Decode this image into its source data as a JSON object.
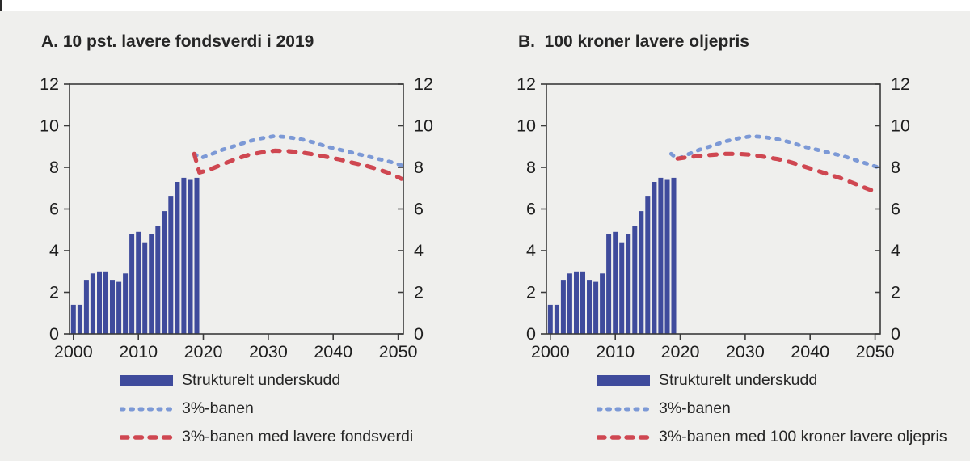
{
  "page": {
    "background_color": "#ffffff",
    "canvas_color": "#efefed"
  },
  "colors": {
    "bar": "#3F4B9C",
    "blue_line": "#7C99D6",
    "red_line": "#CF4751",
    "axis": "#3a3a3a",
    "text": "#1e1e1e"
  },
  "chart_data": [
    {
      "type": "bar",
      "panel_label": "A",
      "title": "A. 10 pst. lavere fondsverdi i 2019",
      "xlabel": "",
      "ylabel": "",
      "xlim": [
        1999.4,
        2050.8
      ],
      "ylim": [
        0,
        12
      ],
      "xticks": [
        2000,
        2010,
        2020,
        2030,
        2040,
        2050
      ],
      "yticks": [
        0,
        2,
        4,
        6,
        8,
        10,
        12
      ],
      "yticks_both_sides": true,
      "grid": false,
      "bars": {
        "name": "Strukturelt underskudd",
        "years": [
          2000,
          2001,
          2002,
          2003,
          2004,
          2005,
          2006,
          2007,
          2008,
          2009,
          2010,
          2011,
          2012,
          2013,
          2014,
          2015,
          2016,
          2017,
          2018,
          2019
        ],
        "values": [
          1.4,
          1.4,
          2.6,
          2.9,
          3.0,
          3.0,
          2.6,
          2.5,
          2.9,
          4.8,
          4.9,
          4.4,
          4.8,
          5.2,
          5.9,
          6.6,
          7.3,
          7.5,
          7.4,
          7.5
        ]
      },
      "series": [
        {
          "name": "3%-banen",
          "color_key": "blue_line",
          "dash": "short",
          "x": [
            2018.6,
            2019.6,
            2021,
            2023,
            2025,
            2027,
            2029,
            2031,
            2033,
            2035,
            2037,
            2039,
            2041,
            2043,
            2045,
            2047,
            2049,
            2050.5
          ],
          "y": [
            8.65,
            8.45,
            8.6,
            8.85,
            9.05,
            9.25,
            9.4,
            9.5,
            9.45,
            9.35,
            9.2,
            9.0,
            8.85,
            8.7,
            8.55,
            8.4,
            8.25,
            8.1
          ]
        },
        {
          "name": "3%-banen med lavere fondsverdi",
          "color_key": "red_line",
          "dash": "long",
          "x": [
            2018.6,
            2019.4,
            2021,
            2023,
            2025,
            2027,
            2029,
            2031,
            2033,
            2035,
            2037,
            2039,
            2041,
            2043,
            2045,
            2047,
            2049,
            2050.5
          ],
          "y": [
            8.65,
            7.75,
            7.9,
            8.15,
            8.4,
            8.6,
            8.72,
            8.8,
            8.78,
            8.72,
            8.62,
            8.5,
            8.38,
            8.22,
            8.08,
            7.9,
            7.68,
            7.45
          ]
        }
      ],
      "legend": [
        {
          "marker": "bar",
          "label": "Strukturelt underskudd"
        },
        {
          "marker": "dash-blue",
          "label": "3%-banen"
        },
        {
          "marker": "dash-red",
          "label": "3%-banen med lavere fondsverdi"
        }
      ]
    },
    {
      "type": "bar",
      "panel_label": "B",
      "title": "B.  100 kroner lavere oljepris",
      "xlabel": "",
      "ylabel": "",
      "xlim": [
        1999.4,
        2050.8
      ],
      "ylim": [
        0,
        12
      ],
      "xticks": [
        2000,
        2010,
        2020,
        2030,
        2040,
        2050
      ],
      "yticks": [
        0,
        2,
        4,
        6,
        8,
        10,
        12
      ],
      "yticks_both_sides": true,
      "grid": false,
      "bars": {
        "name": "Strukturelt underskudd",
        "years": [
          2000,
          2001,
          2002,
          2003,
          2004,
          2005,
          2006,
          2007,
          2008,
          2009,
          2010,
          2011,
          2012,
          2013,
          2014,
          2015,
          2016,
          2017,
          2018,
          2019
        ],
        "values": [
          1.4,
          1.4,
          2.6,
          2.9,
          3.0,
          3.0,
          2.6,
          2.5,
          2.9,
          4.8,
          4.9,
          4.4,
          4.8,
          5.2,
          5.9,
          6.6,
          7.3,
          7.5,
          7.4,
          7.5
        ]
      },
      "series": [
        {
          "name": "3%-banen",
          "color_key": "blue_line",
          "dash": "short",
          "x": [
            2018.6,
            2019.6,
            2021,
            2023,
            2025,
            2027,
            2029,
            2031,
            2033,
            2035,
            2037,
            2039,
            2041,
            2043,
            2045,
            2047,
            2049,
            2050.5
          ],
          "y": [
            8.65,
            8.4,
            8.6,
            8.85,
            9.05,
            9.25,
            9.4,
            9.5,
            9.45,
            9.35,
            9.2,
            9.0,
            8.85,
            8.7,
            8.55,
            8.35,
            8.15,
            8.0
          ]
        },
        {
          "name": "3%-banen med 100 kroner lavere oljepris",
          "color_key": "red_line",
          "dash": "long",
          "x": [
            2019.6,
            2021,
            2023,
            2025,
            2027,
            2029,
            2031,
            2033,
            2035,
            2037,
            2039,
            2041,
            2043,
            2045,
            2047,
            2049,
            2050.5
          ],
          "y": [
            8.42,
            8.48,
            8.55,
            8.6,
            8.65,
            8.65,
            8.6,
            8.5,
            8.4,
            8.25,
            8.05,
            7.85,
            7.65,
            7.45,
            7.2,
            6.95,
            6.8
          ]
        }
      ],
      "legend": [
        {
          "marker": "bar",
          "label": "Strukturelt underskudd"
        },
        {
          "marker": "dash-blue",
          "label": "3%-banen"
        },
        {
          "marker": "dash-red",
          "label": "3%-banen med 100 kroner lavere oljepris"
        }
      ]
    }
  ]
}
